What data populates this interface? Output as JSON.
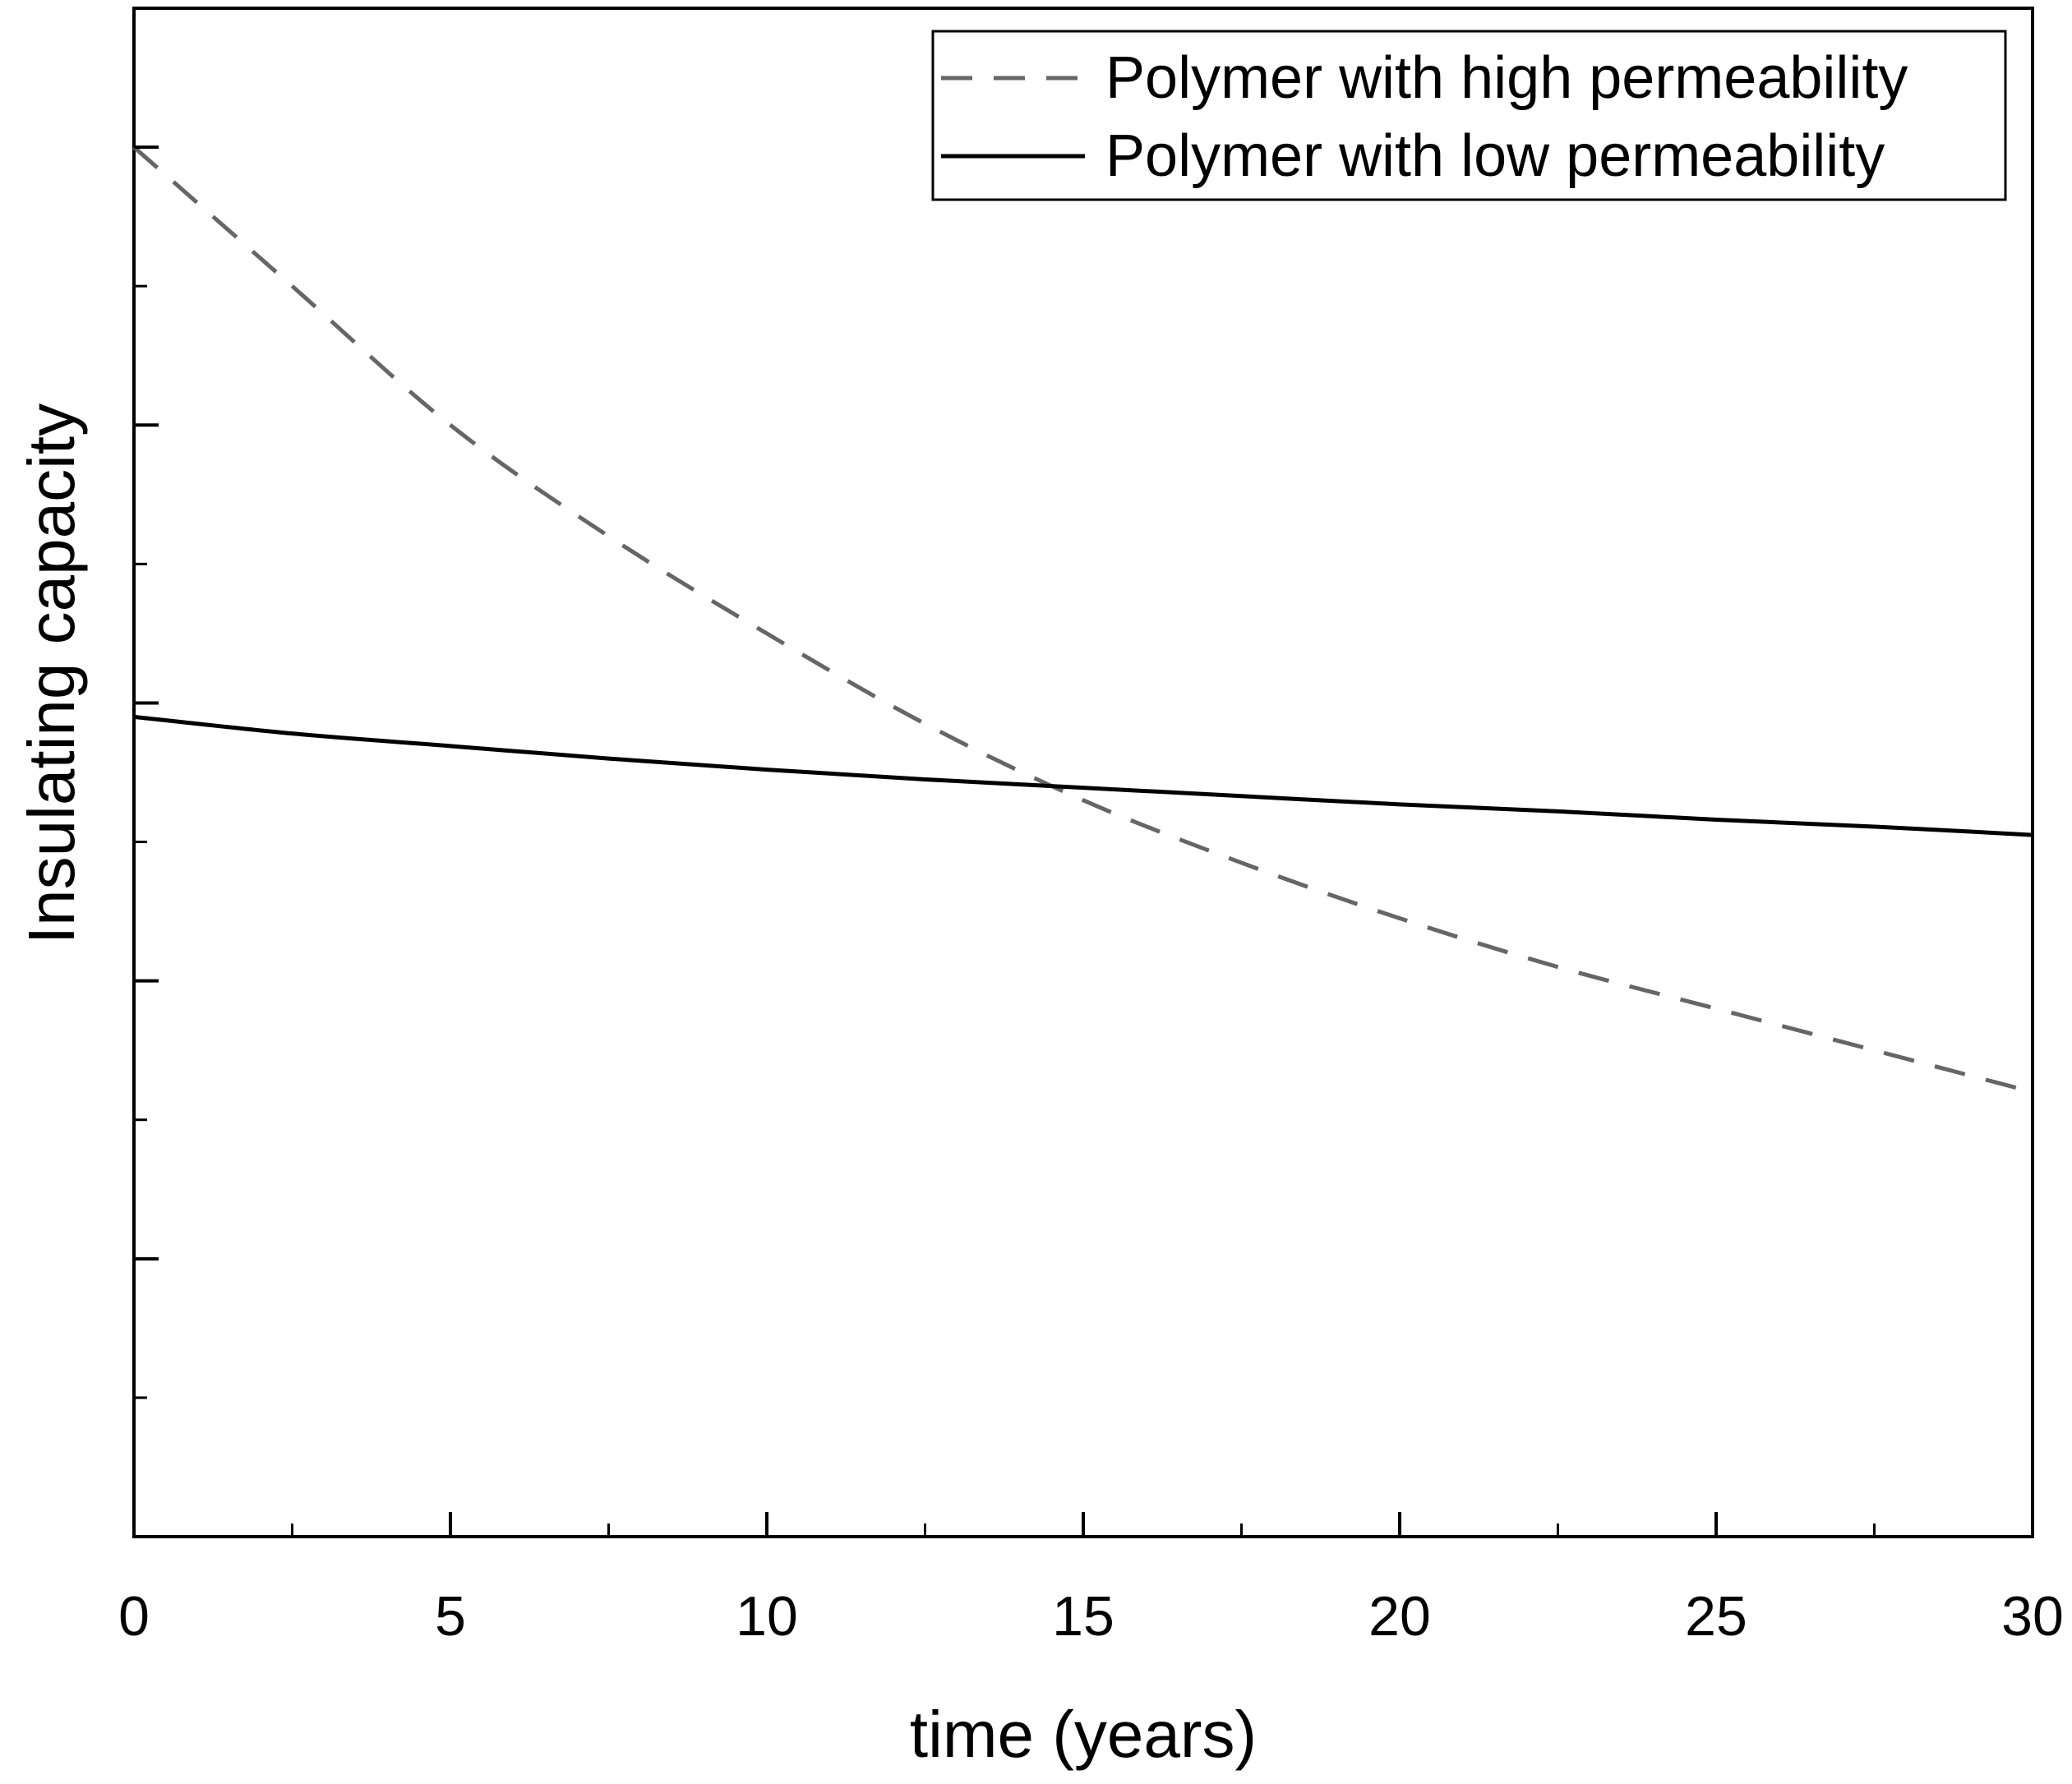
{
  "chart_data": {
    "type": "line",
    "title": "",
    "xlabel": "time (years)",
    "ylabel": "Insulating capacity",
    "xlim": [
      0,
      30
    ],
    "ylim": [
      0,
      11
    ],
    "x_ticks": [
      0,
      5,
      10,
      15,
      20,
      25,
      30
    ],
    "x_tick_labels": [
      "0",
      "5",
      "10",
      "15",
      "20",
      "25",
      "30"
    ],
    "y_tick_labels_shown": false,
    "grid": false,
    "legend_position": "top-right",
    "series": [
      {
        "name": "Polymer with high permeability",
        "style": "dashed",
        "color": "#666666",
        "x": [
          0,
          2.5,
          5,
          7.5,
          10,
          12.5,
          15,
          17.5,
          20,
          22.5,
          25,
          27.5,
          30
        ],
        "y": [
          10.0,
          9.0,
          8.0,
          7.2,
          6.5,
          5.85,
          5.3,
          4.85,
          4.45,
          4.1,
          3.8,
          3.5,
          3.2
        ]
      },
      {
        "name": "Polymer with low permeability",
        "style": "solid",
        "color": "#000000",
        "x": [
          0,
          2.5,
          5,
          7.5,
          10,
          12.5,
          15,
          17.5,
          20,
          22.5,
          25,
          27.5,
          30
        ],
        "y": [
          5.9,
          5.78,
          5.69,
          5.6,
          5.52,
          5.45,
          5.39,
          5.33,
          5.27,
          5.22,
          5.16,
          5.11,
          5.05
        ]
      }
    ]
  }
}
